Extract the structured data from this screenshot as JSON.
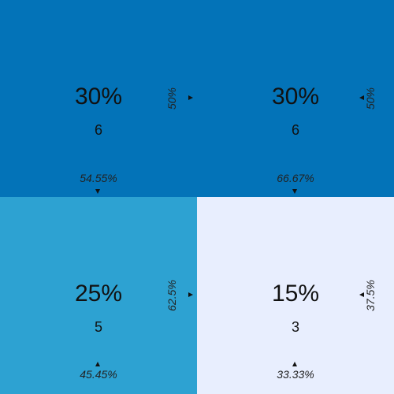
{
  "chart_data": {
    "type": "heatmap",
    "cells": [
      {
        "row": 0,
        "col": 0,
        "percent": "30%",
        "count": "6",
        "value": 6,
        "row_percent": "50%",
        "col_percent": "54.55%",
        "color": "#0373b8"
      },
      {
        "row": 0,
        "col": 1,
        "percent": "30%",
        "count": "6",
        "value": 6,
        "row_percent": "50%",
        "col_percent": "66.67%",
        "color": "#0373b8"
      },
      {
        "row": 1,
        "col": 0,
        "percent": "25%",
        "count": "5",
        "value": 5,
        "row_percent": "62.5%",
        "col_percent": "45.45%",
        "color": "#2da2d2"
      },
      {
        "row": 1,
        "col": 1,
        "percent": "15%",
        "count": "3",
        "value": 3,
        "row_percent": "37.5%",
        "col_percent": "33.33%",
        "color": "#e8eefe"
      }
    ]
  }
}
